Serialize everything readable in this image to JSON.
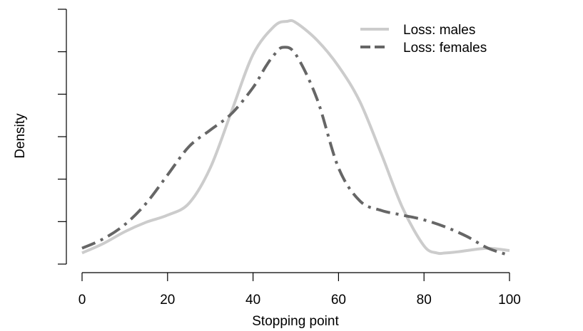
{
  "chart_data": {
    "type": "line",
    "title": "",
    "xlabel": "Stopping point",
    "ylabel": "Density",
    "xlim": [
      0,
      100
    ],
    "ylim": [
      0,
      1
    ],
    "x_ticks": [
      0,
      20,
      40,
      60,
      80,
      100
    ],
    "x_tick_labels": [
      "0",
      "20",
      "40",
      "60",
      "80",
      "100"
    ],
    "y_tick_count": 7,
    "y_tick_labels_shown": false,
    "grid": false,
    "legend_position": "top-right",
    "series": [
      {
        "name": "Loss: males",
        "color": "#cccccc",
        "dash": "solid",
        "x": [
          0,
          5,
          10,
          15,
          20,
          25,
          30,
          35,
          40,
          45,
          48,
          50,
          55,
          60,
          65,
          70,
          75,
          80,
          83,
          85,
          88,
          90,
          95,
          100
        ],
        "y": [
          0.02,
          0.06,
          0.11,
          0.15,
          0.18,
          0.23,
          0.38,
          0.62,
          0.86,
          0.98,
          1.0,
          0.995,
          0.92,
          0.81,
          0.66,
          0.44,
          0.21,
          0.05,
          0.02,
          0.02,
          0.025,
          0.03,
          0.04,
          0.03
        ]
      },
      {
        "name": "Loss: females",
        "color": "#666666",
        "dash": "longdash-dot",
        "x": [
          0,
          5,
          10,
          15,
          20,
          25,
          30,
          35,
          40,
          43,
          45,
          47,
          50,
          55,
          60,
          65,
          70,
          75,
          80,
          85,
          90,
          95,
          100
        ],
        "y": [
          0.04,
          0.08,
          0.14,
          0.23,
          0.35,
          0.47,
          0.54,
          0.61,
          0.72,
          0.81,
          0.86,
          0.89,
          0.86,
          0.67,
          0.38,
          0.24,
          0.2,
          0.18,
          0.16,
          0.13,
          0.09,
          0.04,
          0.01
        ]
      }
    ]
  }
}
